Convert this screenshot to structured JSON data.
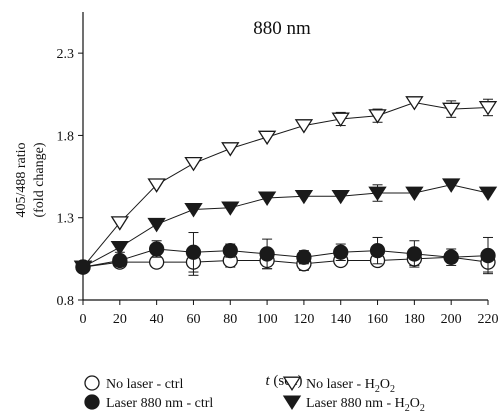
{
  "chart_data": {
    "type": "line",
    "title": "880 nm",
    "xlabel_italic": "t",
    "xlabel_rest": " (sec)",
    "ylabel_line1": "405/488 ratio",
    "ylabel_line2": "(fold change)",
    "xlim": [
      0,
      220
    ],
    "ylim": [
      0.8,
      2.55
    ],
    "x_ticks": [
      0,
      20,
      40,
      60,
      80,
      100,
      120,
      140,
      160,
      180,
      200,
      220
    ],
    "x_tick_labels": [
      "0",
      "20",
      "40",
      "60",
      "80",
      "100",
      "120",
      "140",
      "160",
      "180",
      "200",
      "220"
    ],
    "y_ticks": [
      0.8,
      1.3,
      1.8,
      2.3
    ],
    "y_tick_labels": [
      "0.8",
      "1.3",
      "1.8",
      "2.3"
    ],
    "x": [
      0,
      20,
      40,
      60,
      80,
      100,
      120,
      140,
      160,
      180,
      200,
      220
    ],
    "legend_placement": "bottom",
    "series": [
      {
        "name": "No laser - ctrl",
        "marker": "circle-open",
        "values": [
          1.0,
          1.03,
          1.03,
          1.03,
          1.04,
          1.04,
          1.02,
          1.04,
          1.04,
          1.05,
          1.06,
          1.03
        ],
        "errors": [
          0.0,
          0.02,
          0.03,
          0.08,
          0.04,
          0.05,
          0.04,
          0.03,
          0.03,
          0.04,
          0.03,
          0.06
        ]
      },
      {
        "name": "Laser 880 nm - ctrl",
        "marker": "circle-filled",
        "values": [
          1.0,
          1.04,
          1.11,
          1.09,
          1.1,
          1.08,
          1.06,
          1.09,
          1.1,
          1.08,
          1.06,
          1.07
        ],
        "errors": [
          0.0,
          0.03,
          0.05,
          0.12,
          0.04,
          0.09,
          0.04,
          0.05,
          0.08,
          0.08,
          0.05,
          0.11
        ]
      },
      {
        "name_main": "No laser - H",
        "name_sub": "2",
        "name_mid": "O",
        "name_sub2": "2",
        "marker": "triangle-open",
        "values": [
          1.0,
          1.27,
          1.5,
          1.63,
          1.72,
          1.79,
          1.86,
          1.9,
          1.92,
          2.0,
          1.96,
          1.97
        ],
        "errors": [
          0.0,
          0.0,
          0.0,
          0.0,
          0.0,
          0.0,
          0.0,
          0.04,
          0.04,
          0.0,
          0.05,
          0.05
        ]
      },
      {
        "name_main": "Laser 880 nm - H",
        "name_sub": "2",
        "name_mid": "O",
        "name_sub2": "2",
        "marker": "triangle-filled",
        "values": [
          1.0,
          1.12,
          1.26,
          1.35,
          1.36,
          1.42,
          1.43,
          1.43,
          1.45,
          1.45,
          1.5,
          1.45
        ],
        "errors": [
          0.0,
          0.03,
          0.0,
          0.0,
          0.0,
          0.0,
          0.0,
          0.0,
          0.05,
          0.0,
          0.0,
          0.0
        ]
      }
    ]
  }
}
